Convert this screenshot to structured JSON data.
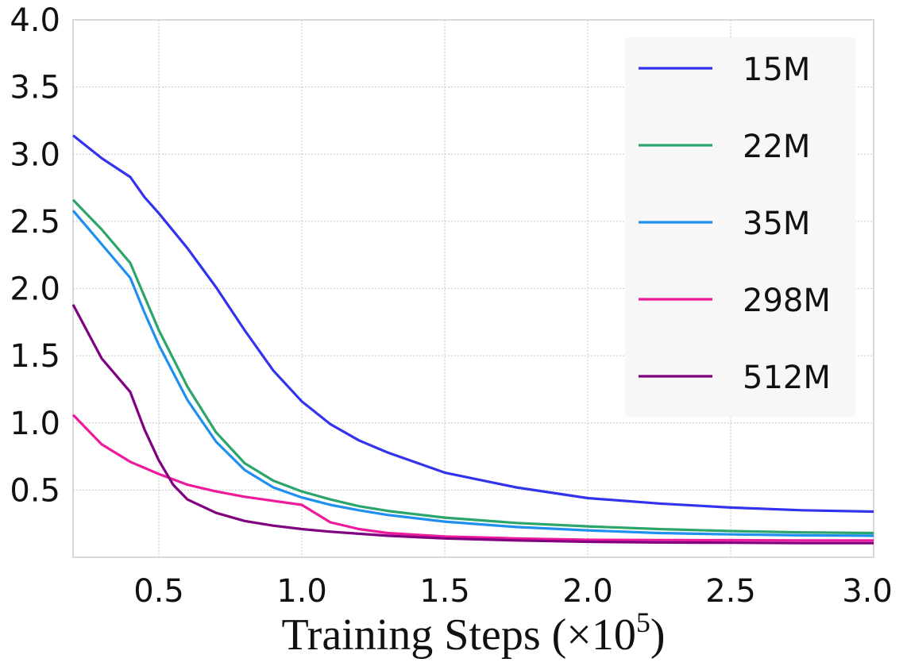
{
  "chart_data": {
    "type": "line",
    "title": "",
    "xlabel": "Training Steps (×10",
    "xlabel_exponent": "5",
    "xlabel_close": ")",
    "ylabel": "",
    "xlim": [
      0.2,
      3.0
    ],
    "ylim": [
      0.0,
      4.0
    ],
    "grid": true,
    "legend_position": "top-right",
    "xticks": [
      {
        "value": 0.5,
        "label": "0.5"
      },
      {
        "value": 1.0,
        "label": "1.0"
      },
      {
        "value": 1.5,
        "label": "1.5"
      },
      {
        "value": 2.0,
        "label": "2.0"
      },
      {
        "value": 2.5,
        "label": "2.5"
      },
      {
        "value": 3.0,
        "label": "3.0"
      }
    ],
    "yticks": [
      {
        "value": 0.5,
        "label": "0.5"
      },
      {
        "value": 1.0,
        "label": "1.0"
      },
      {
        "value": 1.5,
        "label": "1.5"
      },
      {
        "value": 2.0,
        "label": "2.0"
      },
      {
        "value": 2.5,
        "label": "2.5"
      },
      {
        "value": 3.0,
        "label": "3.0"
      },
      {
        "value": 3.5,
        "label": "3.5"
      },
      {
        "value": 4.0,
        "label": "4.0"
      }
    ],
    "series": [
      {
        "name": "15M",
        "color": "#3333ee",
        "x": [
          0.2,
          0.3,
          0.4,
          0.45,
          0.5,
          0.6,
          0.7,
          0.8,
          0.9,
          1.0,
          1.1,
          1.2,
          1.3,
          1.5,
          1.75,
          2.0,
          2.25,
          2.5,
          2.75,
          3.0
        ],
        "y": [
          3.14,
          2.97,
          2.83,
          2.68,
          2.56,
          2.3,
          2.01,
          1.69,
          1.39,
          1.16,
          0.99,
          0.87,
          0.78,
          0.63,
          0.52,
          0.44,
          0.4,
          0.37,
          0.35,
          0.34
        ]
      },
      {
        "name": "22M",
        "color": "#2ca56a",
        "x": [
          0.2,
          0.3,
          0.4,
          0.45,
          0.5,
          0.6,
          0.7,
          0.8,
          0.9,
          1.0,
          1.1,
          1.2,
          1.3,
          1.5,
          1.75,
          2.0,
          2.25,
          2.5,
          2.75,
          3.0
        ],
        "y": [
          2.66,
          2.44,
          2.19,
          1.94,
          1.69,
          1.27,
          0.93,
          0.7,
          0.57,
          0.49,
          0.43,
          0.38,
          0.345,
          0.295,
          0.255,
          0.23,
          0.21,
          0.195,
          0.185,
          0.18
        ]
      },
      {
        "name": "35M",
        "color": "#1f8ff0",
        "x": [
          0.2,
          0.3,
          0.4,
          0.45,
          0.5,
          0.6,
          0.7,
          0.8,
          0.9,
          1.0,
          1.1,
          1.2,
          1.3,
          1.5,
          1.75,
          2.0,
          2.25,
          2.5,
          2.75,
          3.0
        ],
        "y": [
          2.58,
          2.33,
          2.08,
          1.82,
          1.58,
          1.17,
          0.86,
          0.65,
          0.52,
          0.445,
          0.39,
          0.35,
          0.315,
          0.265,
          0.225,
          0.2,
          0.18,
          0.17,
          0.163,
          0.16
        ]
      },
      {
        "name": "298M",
        "color": "#ee1a9b",
        "x": [
          0.2,
          0.3,
          0.4,
          0.5,
          0.6,
          0.7,
          0.8,
          0.9,
          1.0,
          1.1,
          1.2,
          1.3,
          1.5,
          1.75,
          2.0,
          2.25,
          2.5,
          2.75,
          3.0
        ],
        "y": [
          1.06,
          0.84,
          0.71,
          0.62,
          0.54,
          0.49,
          0.45,
          0.42,
          0.39,
          0.26,
          0.21,
          0.18,
          0.155,
          0.14,
          0.13,
          0.128,
          0.127,
          0.125,
          0.125
        ]
      },
      {
        "name": "512M",
        "color": "#800080",
        "x": [
          0.2,
          0.3,
          0.4,
          0.45,
          0.5,
          0.55,
          0.6,
          0.7,
          0.8,
          0.9,
          1.0,
          1.1,
          1.2,
          1.3,
          1.5,
          1.75,
          2.0,
          2.25,
          2.5,
          2.75,
          3.0
        ],
        "y": [
          1.88,
          1.48,
          1.23,
          0.95,
          0.72,
          0.54,
          0.43,
          0.33,
          0.27,
          0.235,
          0.21,
          0.19,
          0.175,
          0.16,
          0.14,
          0.125,
          0.115,
          0.11,
          0.108,
          0.105,
          0.105
        ]
      }
    ]
  }
}
